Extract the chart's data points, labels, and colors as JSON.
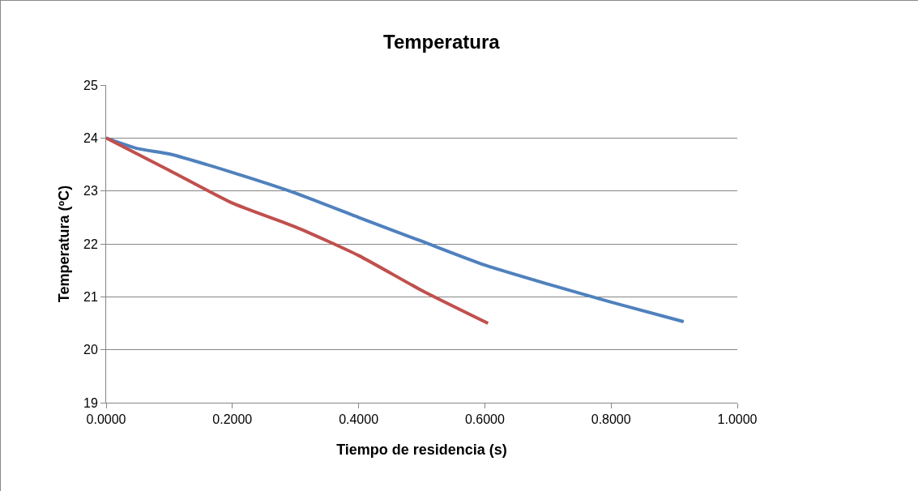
{
  "chart_data": {
    "type": "line",
    "title": "Temperatura",
    "xlabel": "Tiempo de residencia (s)",
    "ylabel": "Temperatura (ºC)",
    "xlim": [
      0,
      1
    ],
    "xticks": [
      {
        "value": 0,
        "label": "0.0000"
      },
      {
        "value": 0.2,
        "label": "0.2000"
      },
      {
        "value": 0.4,
        "label": "0.4000"
      },
      {
        "value": 0.6,
        "label": "0.6000"
      },
      {
        "value": 0.8,
        "label": "0.8000"
      },
      {
        "value": 1,
        "label": "1.0000"
      }
    ],
    "ylim": [
      19,
      25
    ],
    "yticks": [
      19,
      20,
      21,
      22,
      23,
      24,
      25
    ],
    "grid": "y",
    "marker": "none",
    "line_style": "solid",
    "series": [
      {
        "color": "#4f81bd",
        "x": [
          0,
          0.05,
          0.1,
          0.2,
          0.3,
          0.4,
          0.5,
          0.6,
          0.7,
          0.8,
          0.915
        ],
        "values": [
          24,
          23.8,
          23.7,
          23.35,
          22.96,
          22.5,
          22.05,
          21.6,
          21.24,
          20.9,
          20.53
        ]
      },
      {
        "color": "#c0504d",
        "x": [
          0,
          0.1,
          0.2,
          0.3,
          0.4,
          0.5,
          0.605
        ],
        "values": [
          24,
          23.39,
          22.77,
          22.32,
          21.78,
          21.12,
          20.5
        ]
      }
    ]
  }
}
